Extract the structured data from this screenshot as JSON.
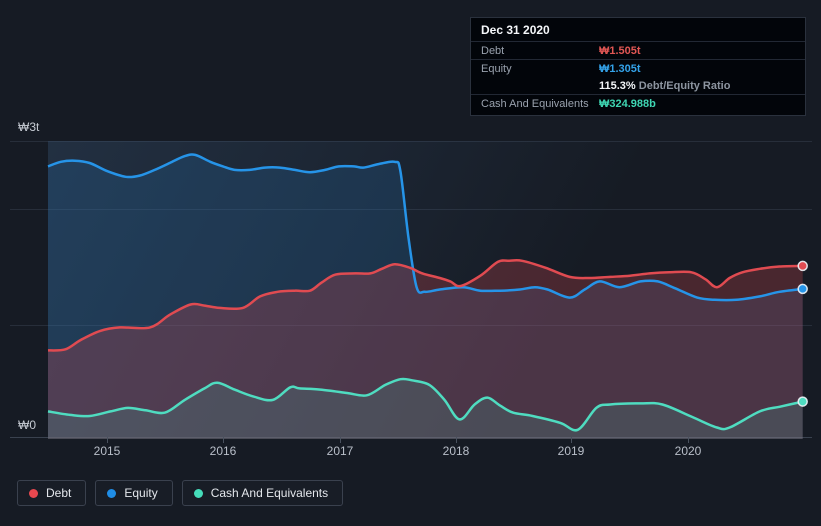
{
  "tooltip": {
    "date": "Dec 31 2020",
    "rows": [
      {
        "label": "Debt",
        "value": "₩1.505t",
        "color": "#e25754"
      },
      {
        "label": "Equity",
        "value": "₩1.305t",
        "color": "#34a3ea"
      },
      {
        "label": "Cash And Equivalents",
        "value": "₩324.988b",
        "color": "#3fd6b3"
      }
    ],
    "ratio": {
      "value": "115.3%",
      "label": " Debt/Equity Ratio"
    }
  },
  "axis": {
    "y_top_label": "₩3t",
    "y_bottom_label": "₩0",
    "x_labels": [
      "2015",
      "2016",
      "2017",
      "2018",
      "2019",
      "2020"
    ]
  },
  "legend": [
    {
      "label": "Debt",
      "color": "#e8484f"
    },
    {
      "label": "Equity",
      "color": "#1f8de6"
    },
    {
      "label": "Cash And Equivalents",
      "color": "#45dcba"
    }
  ],
  "chart_data": {
    "type": "area",
    "title": "Debt, Equity and Cash history",
    "unit": "KRW trillions",
    "x_range": [
      2014.49,
      2021.02
    ],
    "ylim": [
      0,
      3
    ],
    "grid": true,
    "legend_position": "bottom-left",
    "series": [
      {
        "name": "Equity",
        "line_color": "#2694e8",
        "fill_color": "rgba(38,125,195,0.20)",
        "points": [
          [
            2014.49,
            2.37
          ],
          [
            2014.6,
            2.41
          ],
          [
            2014.72,
            2.42
          ],
          [
            2014.85,
            2.4
          ],
          [
            2015.0,
            2.33
          ],
          [
            2015.16,
            2.28
          ],
          [
            2015.28,
            2.29
          ],
          [
            2015.41,
            2.34
          ],
          [
            2015.54,
            2.4
          ],
          [
            2015.67,
            2.46
          ],
          [
            2015.76,
            2.47
          ],
          [
            2015.89,
            2.41
          ],
          [
            2016.0,
            2.37
          ],
          [
            2016.1,
            2.34
          ],
          [
            2016.23,
            2.34
          ],
          [
            2016.36,
            2.36
          ],
          [
            2016.49,
            2.36
          ],
          [
            2016.62,
            2.34
          ],
          [
            2016.75,
            2.32
          ],
          [
            2016.88,
            2.34
          ],
          [
            2017.0,
            2.37
          ],
          [
            2017.13,
            2.37
          ],
          [
            2017.21,
            2.36
          ],
          [
            2017.34,
            2.39
          ],
          [
            2017.48,
            2.41
          ],
          [
            2017.53,
            2.33
          ],
          [
            2017.6,
            1.75
          ],
          [
            2017.67,
            1.32
          ],
          [
            2017.74,
            1.28
          ],
          [
            2017.87,
            1.3
          ],
          [
            2018.07,
            1.32
          ],
          [
            2018.22,
            1.29
          ],
          [
            2018.39,
            1.29
          ],
          [
            2018.56,
            1.3
          ],
          [
            2018.69,
            1.32
          ],
          [
            2018.8,
            1.3
          ],
          [
            2018.99,
            1.23
          ],
          [
            2019.12,
            1.3
          ],
          [
            2019.25,
            1.37
          ],
          [
            2019.42,
            1.32
          ],
          [
            2019.6,
            1.37
          ],
          [
            2019.75,
            1.37
          ],
          [
            2019.9,
            1.31
          ],
          [
            2020.09,
            1.23
          ],
          [
            2020.24,
            1.21
          ],
          [
            2020.43,
            1.21
          ],
          [
            2020.63,
            1.24
          ],
          [
            2020.8,
            1.28
          ],
          [
            2021.0,
            1.305
          ]
        ]
      },
      {
        "name": "Debt",
        "line_color": "#e04b51",
        "fill_color": "rgba(222,72,82,0.26)",
        "points": [
          [
            2014.49,
            0.77
          ],
          [
            2014.64,
            0.78
          ],
          [
            2014.77,
            0.86
          ],
          [
            2014.94,
            0.94
          ],
          [
            2015.11,
            0.97
          ],
          [
            2015.37,
            0.97
          ],
          [
            2015.54,
            1.08
          ],
          [
            2015.72,
            1.17
          ],
          [
            2015.84,
            1.16
          ],
          [
            2015.97,
            1.14
          ],
          [
            2016.17,
            1.14
          ],
          [
            2016.32,
            1.24
          ],
          [
            2016.47,
            1.28
          ],
          [
            2016.62,
            1.29
          ],
          [
            2016.75,
            1.29
          ],
          [
            2016.85,
            1.36
          ],
          [
            2016.97,
            1.43
          ],
          [
            2017.14,
            1.44
          ],
          [
            2017.27,
            1.44
          ],
          [
            2017.37,
            1.48
          ],
          [
            2017.48,
            1.52
          ],
          [
            2017.61,
            1.49
          ],
          [
            2017.72,
            1.44
          ],
          [
            2017.87,
            1.4
          ],
          [
            2017.96,
            1.37
          ],
          [
            2018.05,
            1.33
          ],
          [
            2018.22,
            1.42
          ],
          [
            2018.37,
            1.54
          ],
          [
            2018.47,
            1.55
          ],
          [
            2018.58,
            1.55
          ],
          [
            2018.78,
            1.49
          ],
          [
            2018.99,
            1.41
          ],
          [
            2019.16,
            1.4
          ],
          [
            2019.34,
            1.41
          ],
          [
            2019.51,
            1.42
          ],
          [
            2019.68,
            1.44
          ],
          [
            2019.85,
            1.45
          ],
          [
            2020.04,
            1.45
          ],
          [
            2020.16,
            1.39
          ],
          [
            2020.26,
            1.32
          ],
          [
            2020.37,
            1.4
          ],
          [
            2020.48,
            1.45
          ],
          [
            2020.63,
            1.48
          ],
          [
            2020.8,
            1.5
          ],
          [
            2021.0,
            1.505
          ]
        ]
      },
      {
        "name": "Cash And Equivalents",
        "line_color": "#4fdcc0",
        "fill_color": "rgba(72,214,186,0.14)",
        "points": [
          [
            2014.49,
            0.24
          ],
          [
            2014.68,
            0.21
          ],
          [
            2014.85,
            0.2
          ],
          [
            2015.03,
            0.24
          ],
          [
            2015.18,
            0.27
          ],
          [
            2015.33,
            0.25
          ],
          [
            2015.5,
            0.23
          ],
          [
            2015.67,
            0.34
          ],
          [
            2015.84,
            0.44
          ],
          [
            2015.95,
            0.49
          ],
          [
            2016.1,
            0.43
          ],
          [
            2016.26,
            0.37
          ],
          [
            2016.43,
            0.34
          ],
          [
            2016.58,
            0.45
          ],
          [
            2016.66,
            0.44
          ],
          [
            2016.84,
            0.43
          ],
          [
            2017.07,
            0.4
          ],
          [
            2017.24,
            0.38
          ],
          [
            2017.4,
            0.47
          ],
          [
            2017.53,
            0.52
          ],
          [
            2017.63,
            0.51
          ],
          [
            2017.78,
            0.47
          ],
          [
            2017.91,
            0.34
          ],
          [
            2018.04,
            0.17
          ],
          [
            2018.17,
            0.3
          ],
          [
            2018.28,
            0.36
          ],
          [
            2018.39,
            0.29
          ],
          [
            2018.5,
            0.23
          ],
          [
            2018.67,
            0.2
          ],
          [
            2018.91,
            0.14
          ],
          [
            2019.06,
            0.08
          ],
          [
            2019.22,
            0.27
          ],
          [
            2019.34,
            0.3
          ],
          [
            2019.6,
            0.31
          ],
          [
            2019.79,
            0.3
          ],
          [
            2020.05,
            0.19
          ],
          [
            2020.26,
            0.1
          ],
          [
            2020.37,
            0.1
          ],
          [
            2020.63,
            0.24
          ],
          [
            2020.8,
            0.28
          ],
          [
            2021.0,
            0.325
          ]
        ]
      }
    ]
  }
}
